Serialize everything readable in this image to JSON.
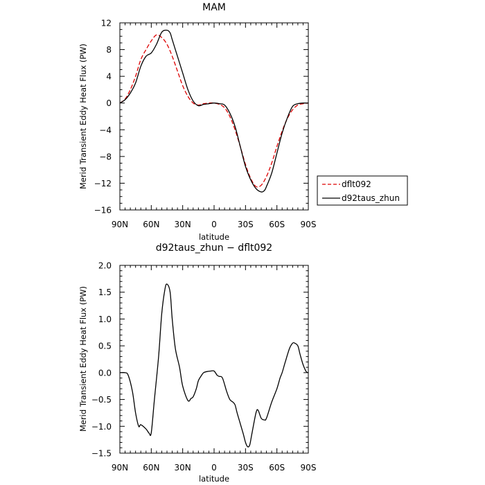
{
  "chart_data": [
    {
      "type": "line",
      "title": "MAM",
      "xlabel": "latitude",
      "ylabel": "Merid Transient Eddy Heat Flux (PW)",
      "x_direction": "90N to 90S",
      "xlim": [
        90,
        -90
      ],
      "ylim": [
        -16,
        12
      ],
      "x_tick_values": [
        90,
        60,
        30,
        0,
        -30,
        -60,
        -90
      ],
      "x_tick_labels": [
        "90N",
        "60N",
        "30N",
        "0",
        "30S",
        "60S",
        "90S"
      ],
      "y_tick_values": [
        12,
        8,
        4,
        0,
        -4,
        -8,
        -12,
        -16
      ],
      "y_tick_labels": [
        "12",
        "8",
        "4",
        "0",
        "−4",
        "−8",
        "−12",
        "−16"
      ],
      "grid": false,
      "legend": {
        "placement": "outside-right-bottom",
        "entries": [
          {
            "label": "dflt092",
            "color": "#dd0000",
            "style": "dashed"
          },
          {
            "label": "d92taus_zhun",
            "color": "#000000",
            "style": "solid"
          }
        ]
      },
      "series": [
        {
          "name": "dflt092",
          "color": "#dd0000",
          "style": "dashed",
          "x": [
            90,
            85,
            80,
            75,
            70,
            65,
            60,
            55,
            50,
            45,
            40,
            35,
            30,
            25,
            20,
            15,
            10,
            5,
            0,
            -5,
            -10,
            -15,
            -20,
            -25,
            -30,
            -35,
            -40,
            -45,
            -50,
            -55,
            -60,
            -65,
            -70,
            -75,
            -80,
            -85,
            -90
          ],
          "y": [
            0,
            0.6,
            2.0,
            4.0,
            6.5,
            8.0,
            9.3,
            10.2,
            9.8,
            8.8,
            7.0,
            4.8,
            2.6,
            1.0,
            0,
            -0.3,
            -0.1,
            0,
            0,
            -0.2,
            -0.7,
            -2.0,
            -4.0,
            -6.5,
            -9.2,
            -11.3,
            -12.5,
            -12.3,
            -11.0,
            -9.0,
            -6.5,
            -4.2,
            -2.3,
            -1.0,
            -0.3,
            -0.1,
            0
          ]
        },
        {
          "name": "d92taus_zhun",
          "color": "#000000",
          "style": "solid",
          "x": [
            90,
            85,
            80,
            75,
            70,
            65,
            60,
            55,
            50,
            45,
            42,
            40,
            35,
            30,
            25,
            20,
            15,
            10,
            5,
            0,
            -5,
            -10,
            -15,
            -20,
            -25,
            -30,
            -35,
            -40,
            -45,
            -48,
            -50,
            -55,
            -60,
            -65,
            -70,
            -75,
            -80,
            -85,
            -90
          ],
          "y": [
            0,
            0.5,
            1.5,
            3.0,
            5.5,
            7.0,
            7.5,
            8.8,
            10.6,
            10.9,
            10.5,
            9.5,
            7.0,
            4.5,
            2.0,
            0.3,
            -0.4,
            -0.2,
            -0.1,
            0,
            -0.1,
            -0.3,
            -1.5,
            -3.5,
            -6.5,
            -9.5,
            -11.5,
            -12.8,
            -13.3,
            -13.1,
            -12.5,
            -10.5,
            -7.5,
            -4.5,
            -2.2,
            -0.5,
            -0.1,
            0,
            0
          ]
        }
      ]
    },
    {
      "type": "line",
      "title": "d92taus_zhun − dflt092",
      "xlabel": "latitude",
      "ylabel": "Merid Transient Eddy Heat Flux (PW)",
      "xlim": [
        90,
        -90
      ],
      "ylim": [
        -1.5,
        2.0
      ],
      "x_tick_values": [
        90,
        60,
        30,
        0,
        -30,
        -60,
        -90
      ],
      "x_tick_labels": [
        "90N",
        "60N",
        "30N",
        "0",
        "30S",
        "60S",
        "90S"
      ],
      "y_tick_values": [
        2.0,
        1.5,
        1.0,
        0.5,
        0.0,
        -0.5,
        -1.0,
        -1.5
      ],
      "y_tick_labels": [
        "2.0",
        "1.5",
        "1.0",
        "0.5",
        "0.0",
        "−0.5",
        "−1.0",
        "−1.5"
      ],
      "grid": false,
      "series": [
        {
          "color": "#000000",
          "style": "solid",
          "x": [
            90,
            85,
            82,
            78,
            75,
            72,
            70,
            65,
            62,
            60,
            57,
            53,
            50,
            47,
            45,
            42,
            40,
            37,
            33,
            30,
            25,
            22,
            20,
            17,
            15,
            12,
            10,
            7,
            3,
            0,
            -3,
            -5,
            -8,
            -12,
            -15,
            -18,
            -20,
            -22,
            -25,
            -28,
            -30,
            -32,
            -34,
            -36,
            -40,
            -42,
            -45,
            -48,
            -50,
            -55,
            -60,
            -63,
            -65,
            -68,
            -72,
            -75,
            -77,
            -80,
            -82,
            -85,
            -88,
            -90
          ],
          "y": [
            0,
            0,
            -0.05,
            -0.35,
            -0.75,
            -1.0,
            -0.97,
            -1.05,
            -1.13,
            -1.12,
            -0.5,
            0.3,
            1.1,
            1.55,
            1.65,
            1.5,
            1.0,
            0.45,
            0.1,
            -0.25,
            -0.52,
            -0.48,
            -0.45,
            -0.3,
            -0.15,
            -0.05,
            0,
            0.02,
            0.03,
            0.03,
            -0.05,
            -0.07,
            -0.1,
            -0.35,
            -0.5,
            -0.55,
            -0.6,
            -0.75,
            -0.95,
            -1.15,
            -1.3,
            -1.38,
            -1.35,
            -1.15,
            -0.75,
            -0.7,
            -0.85,
            -0.88,
            -0.85,
            -0.55,
            -0.3,
            -0.1,
            0.0,
            0.2,
            0.45,
            0.55,
            0.55,
            0.5,
            0.35,
            0.15,
            0.02,
            0
          ]
        }
      ]
    }
  ]
}
